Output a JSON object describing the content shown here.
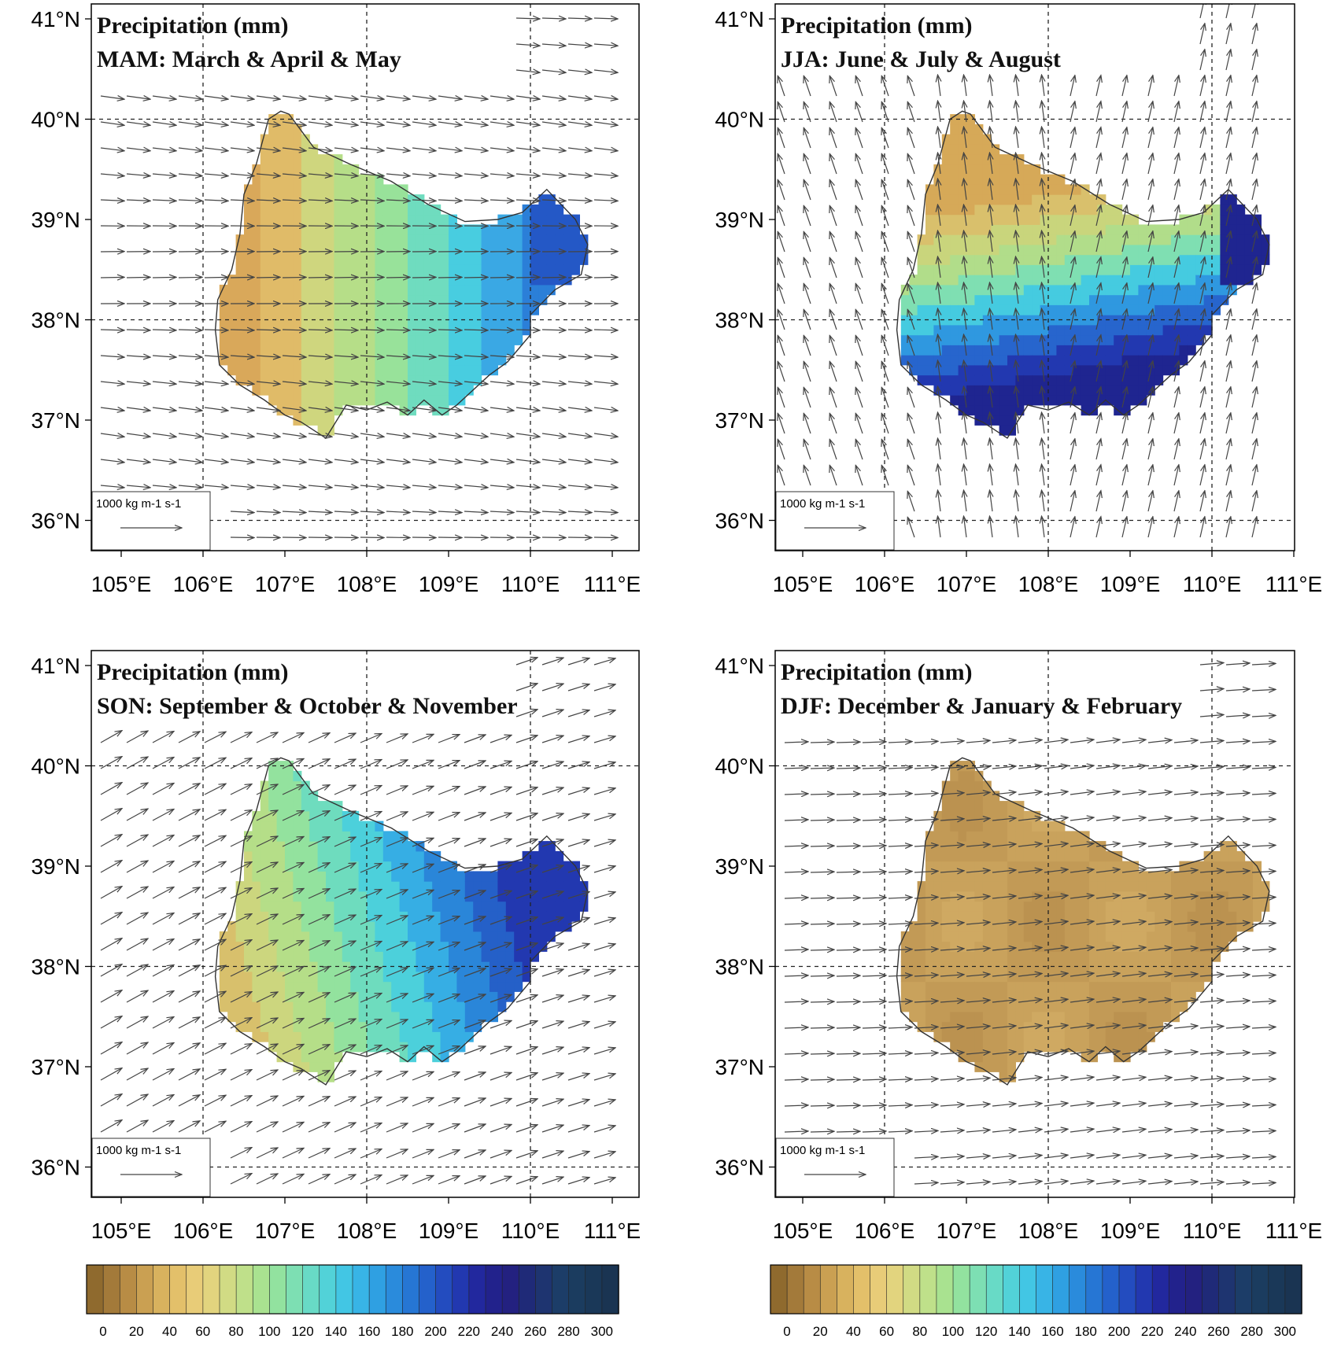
{
  "figure": {
    "panels": [
      {
        "id": "mam",
        "title": "Precipitation (mm)",
        "subtitle": "MAM: March & April & May",
        "palette": "mam"
      },
      {
        "id": "jja",
        "title": "Precipitation (mm)",
        "subtitle": "JJA: June & July & August",
        "palette": "jja"
      },
      {
        "id": "son",
        "title": "Precipitation (mm)",
        "subtitle": "SON: September & October & November",
        "palette": "son"
      },
      {
        "id": "djf",
        "title": "Precipitation (mm)",
        "subtitle": "DJF: December & January & February",
        "palette": "djf"
      }
    ],
    "lat_ticks": [
      "41°N",
      "40°N",
      "39°N",
      "38°N",
      "37°N",
      "36°N"
    ],
    "lon_ticks": [
      "105°E",
      "106°E",
      "107°E",
      "108°E",
      "109°E",
      "110°E",
      "111°E"
    ],
    "reference_vector_label": "1000 kg m-1 s-1",
    "colorbar": {
      "labels": [
        "0",
        "20",
        "40",
        "60",
        "80",
        "100",
        "120",
        "140",
        "160",
        "180",
        "200",
        "220",
        "240",
        "260",
        "280",
        "300"
      ],
      "colors": [
        "#8f6a2e",
        "#a37a3a",
        "#b88c45",
        "#caa052",
        "#d8b25e",
        "#e3c06a",
        "#e8cc78",
        "#e2d47e",
        "#d1db84",
        "#bfe08a",
        "#a9e290",
        "#92e29f",
        "#7ddfb3",
        "#68dac6",
        "#52d2d8",
        "#42c6e4",
        "#38b4e6",
        "#2fa0e2",
        "#2a8bdc",
        "#2676d4",
        "#2461cb",
        "#234cbf",
        "#2238b0",
        "#22289e",
        "#22228c",
        "#232180",
        "#1f2a78",
        "#1e3470",
        "#1c3d68",
        "#1b3c5f",
        "#1a3858",
        "#1a3452"
      ]
    }
  }
}
